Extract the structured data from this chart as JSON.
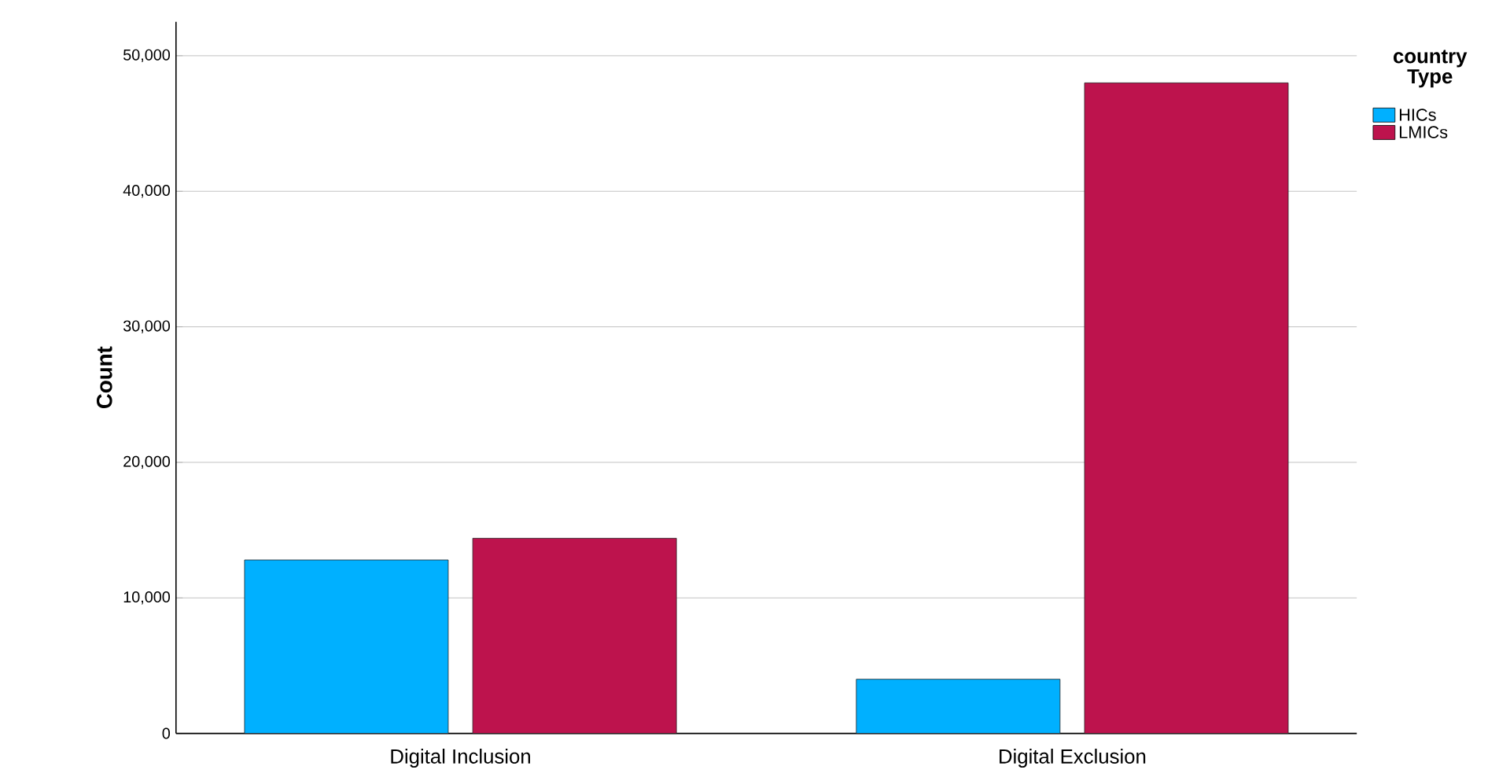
{
  "chart_data": {
    "type": "bar",
    "ylabel": "Count",
    "legend_title": "country Type",
    "categories": [
      "Digital Inclusion",
      "Digital Exclusion"
    ],
    "series": [
      {
        "name": "HICs",
        "color": "#00b0ff",
        "values": [
          12800,
          4000
        ]
      },
      {
        "name": "LMICs",
        "color": "#bd134d",
        "values": [
          14400,
          48000
        ]
      }
    ],
    "ylim": [
      0,
      52500
    ],
    "yticks": [
      0,
      {
        "value": 10000,
        "label": "10,000"
      },
      {
        "value": 20000,
        "label": "20,000"
      },
      {
        "value": 30000,
        "label": "30,000"
      },
      {
        "value": 40000,
        "label": "40,000"
      },
      {
        "value": 50000,
        "label": "50,000"
      }
    ],
    "grid": "y",
    "legend": "top right"
  }
}
